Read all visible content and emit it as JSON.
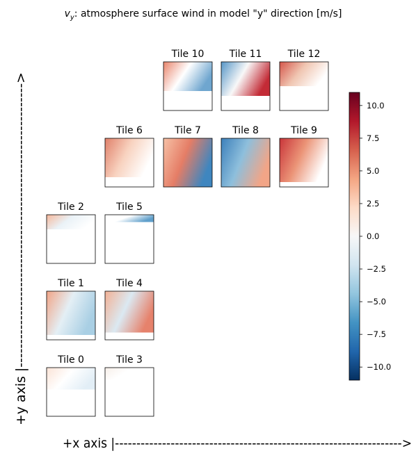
{
  "chart_data": {
    "type": "tile-map",
    "title_symbol": "v",
    "title_subscript": "y",
    "title": ": atmosphere surface wind in model \"y\" direction [m/s]",
    "tiles": [
      "Tile 0",
      "Tile 1",
      "Tile 2",
      "Tile 3",
      "Tile 4",
      "Tile 5",
      "Tile 6",
      "Tile 7",
      "Tile 8",
      "Tile 9",
      "Tile 10",
      "Tile 11",
      "Tile 12"
    ],
    "colorbar": {
      "ylim": [
        -11,
        11
      ],
      "colormap": "RdBu_r",
      "yticks": [
        {
          "value": -10,
          "label": "−10.0"
        },
        {
          "value": -7.5,
          "label": "−7.5"
        },
        {
          "value": -5,
          "label": "−5.0"
        },
        {
          "value": -2.5,
          "label": "−2.5"
        },
        {
          "value": 0,
          "label": "0.0"
        },
        {
          "value": 2.5,
          "label": "2.5"
        },
        {
          "value": 5,
          "label": "5.0"
        },
        {
          "value": 7.5,
          "label": "7.5"
        },
        {
          "value": 10,
          "label": "10.0"
        }
      ]
    },
    "x_axis_label": "+x axis |------------------------------------------------------------------->",
    "y_axis_label": "+y axis |------------------------------------------------------------>"
  }
}
